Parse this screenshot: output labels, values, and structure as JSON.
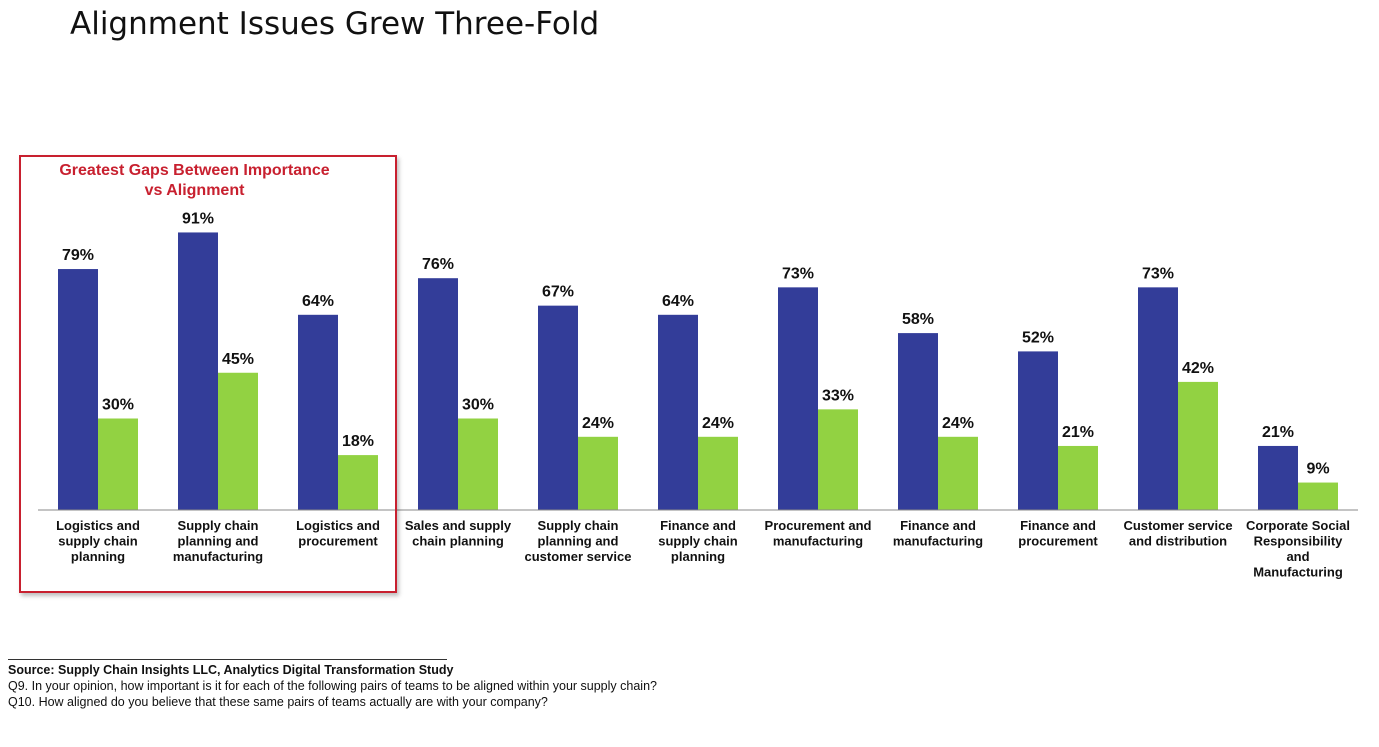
{
  "title": "Alignment Issues Grew Three-Fold",
  "highlight": {
    "line1": "Greatest Gaps Between Importance",
    "line2": "vs Alignment"
  },
  "colors": {
    "importance": "#333d99",
    "alignment": "#92d242",
    "highlight": "#c8202f"
  },
  "footer": {
    "source": "Source:  Supply Chain Insights LLC, Analytics Digital Transformation Study",
    "q9": "Q9. In your opinion, how important is it for each of the following pairs of teams to be aligned within your supply chain?",
    "q10": "Q10. How aligned do you believe that these same pairs of teams actually are with your company?"
  },
  "chart_data": {
    "type": "bar",
    "title": "Alignment Issues Grew Three-Fold",
    "categories": [
      [
        "Logistics and",
        "supply chain",
        "planning"
      ],
      [
        "Supply chain",
        "planning and",
        "manufacturing"
      ],
      [
        "Logistics and",
        "procurement"
      ],
      [
        "Sales and supply",
        "chain planning"
      ],
      [
        "Supply chain",
        "planning and",
        "customer service"
      ],
      [
        "Finance and",
        "supply chain",
        "planning"
      ],
      [
        "Procurement and",
        "manufacturing"
      ],
      [
        "Finance and",
        "manufacturing"
      ],
      [
        "Finance and",
        "procurement"
      ],
      [
        "Customer service",
        "and distribution"
      ],
      [
        "Corporate Social",
        "Responsibility",
        "and",
        "Manufacturing"
      ]
    ],
    "series": [
      {
        "values": [
          79,
          91,
          64,
          76,
          67,
          64,
          73,
          58,
          52,
          73,
          21
        ],
        "color": "#333d99"
      },
      {
        "values": [
          30,
          45,
          18,
          30,
          24,
          24,
          33,
          24,
          21,
          42,
          9
        ],
        "color": "#92d242"
      }
    ],
    "value_suffix": "%",
    "ylim": [
      0,
      100
    ],
    "grid": false,
    "legend": "none"
  }
}
